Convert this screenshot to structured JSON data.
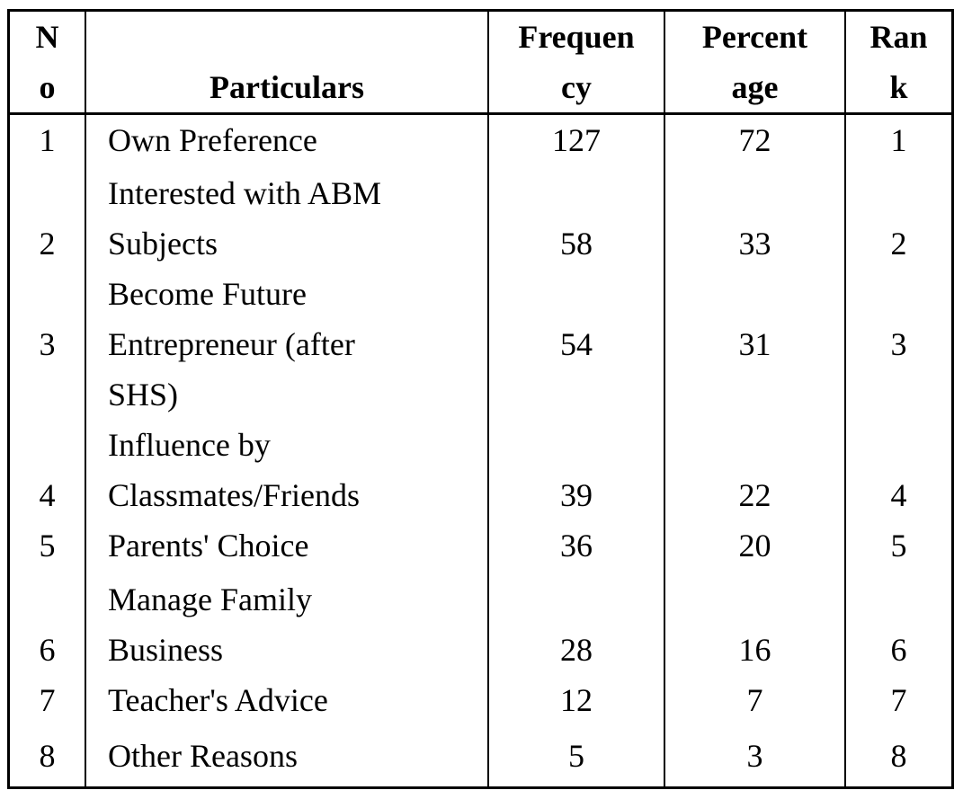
{
  "table": {
    "headers": {
      "no_line1": "N",
      "no_line2": "o",
      "particulars": "Particulars",
      "frequency_line1": "Frequen",
      "frequency_line2": "cy",
      "percentage_line1": "Percent",
      "percentage_line2": "age",
      "rank_line1": "Ran",
      "rank_line2": "k"
    },
    "rows": [
      {
        "no": "1",
        "particulars": [
          "Own Preference"
        ],
        "frequency": "127",
        "percentage": "72",
        "rank": "1"
      },
      {
        "no": "2",
        "particulars": [
          "Interested with ABM",
          "Subjects"
        ],
        "frequency": "58",
        "percentage": "33",
        "rank": "2"
      },
      {
        "no": "3",
        "particulars": [
          "Become  Future",
          "Entrepreneur (after",
          "SHS)"
        ],
        "frequency": "54",
        "percentage": "31",
        "rank": "3"
      },
      {
        "no": "4",
        "particulars": [
          "Influence by",
          "Classmates/Friends"
        ],
        "frequency": "39",
        "percentage": "22",
        "rank": "4"
      },
      {
        "no": "5",
        "particulars": [
          "Parents' Choice"
        ],
        "frequency": "36",
        "percentage": "20",
        "rank": "5"
      },
      {
        "no": "6",
        "particulars": [
          "Manage Family",
          "Business"
        ],
        "frequency": "28",
        "percentage": "16",
        "rank": "6"
      },
      {
        "no": "7",
        "particulars": [
          "Teacher's Advice"
        ],
        "frequency": "12",
        "percentage": "7",
        "rank": "7"
      },
      {
        "no": "8",
        "particulars": [
          "Other Reasons"
        ],
        "frequency": "5",
        "percentage": "3",
        "rank": "8"
      }
    ]
  }
}
